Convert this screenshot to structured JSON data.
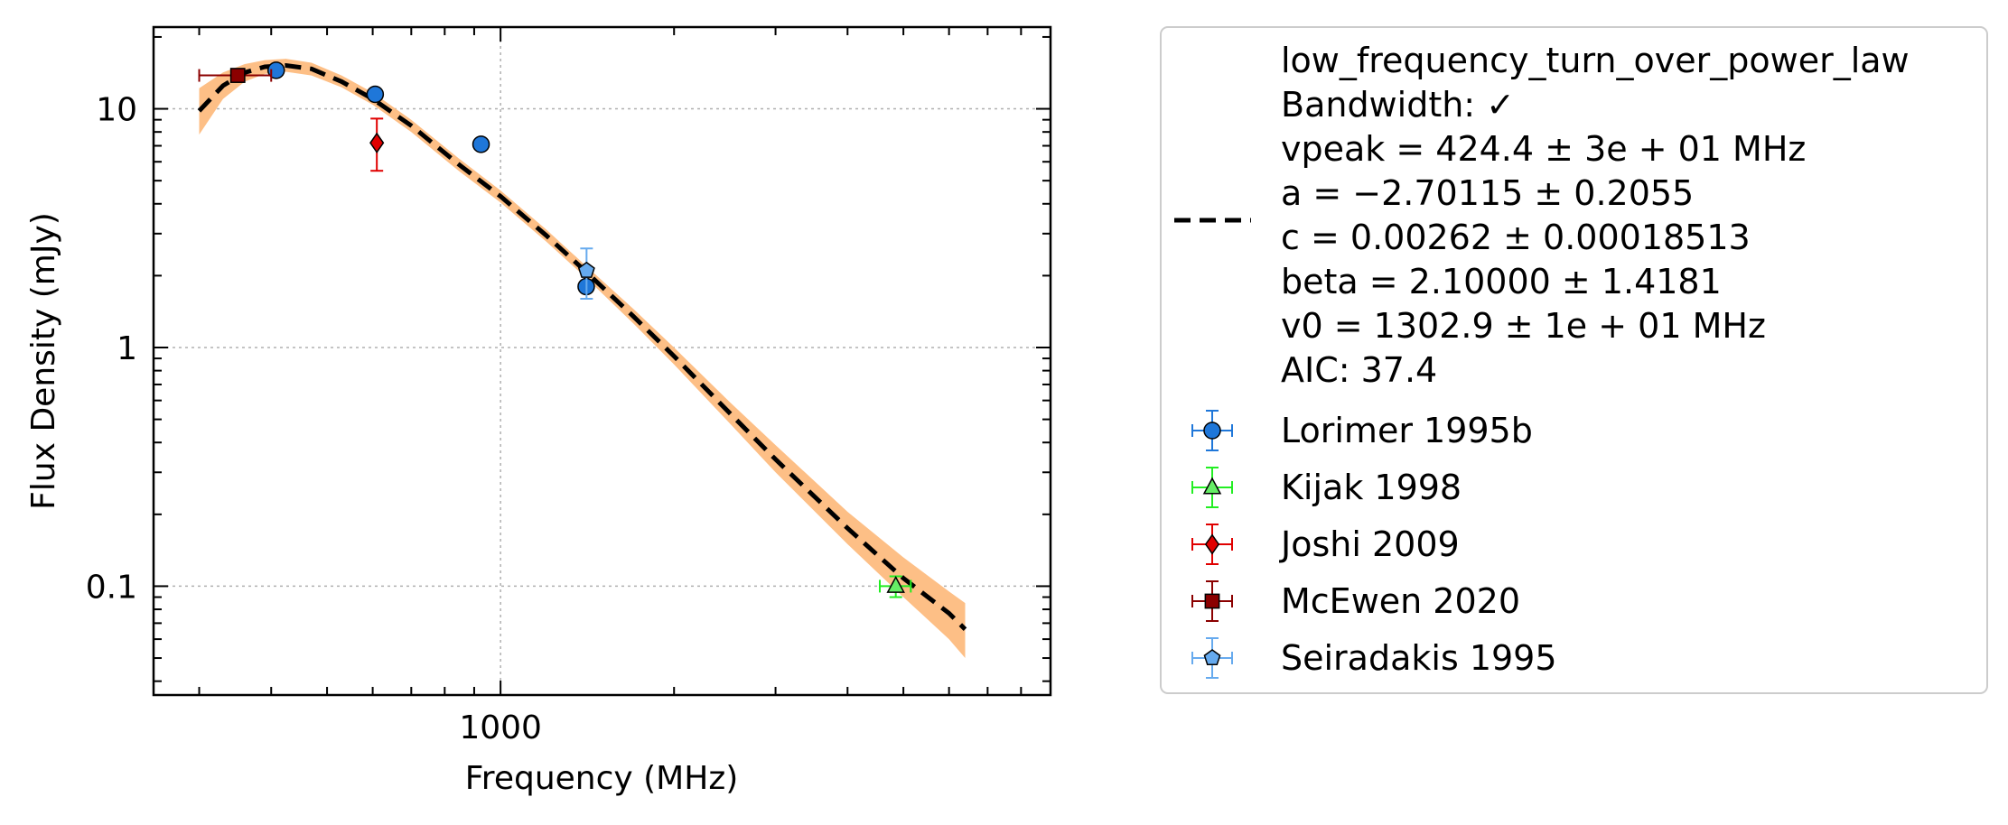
{
  "chart_data": {
    "type": "scatter",
    "xlabel": "Frequency (MHz)",
    "ylabel": "Flux Density (mJy)",
    "x_scale": "log",
    "y_scale": "log",
    "xlim": [
      250,
      9000
    ],
    "ylim": [
      0.035,
      22
    ],
    "x_ticks": [
      {
        "value": 1000,
        "label": "1000"
      }
    ],
    "y_ticks": [
      {
        "value": 0.1,
        "label": "0.1"
      },
      {
        "value": 1,
        "label": "1"
      },
      {
        "value": 10,
        "label": "10"
      }
    ],
    "grid": true,
    "legend_position": "outside right",
    "fit": {
      "label_lines": [
        "low_frequency_turn_over_power_law",
        "Bandwidth: ✓",
        "vpeak = 424.4 ± 3e + 01 MHz",
        "a = −2.70115 ± 0.2055",
        "c = 0.00262 ± 0.00018513",
        "beta = 2.10000 ± 1.4181",
        "v0 = 1302.9 ± 1e + 01 MHz",
        "AIC: 37.4"
      ],
      "line_color": "#000000",
      "band_color": "#fdbf86",
      "curve": [
        {
          "x": 300,
          "y": 9.8,
          "lo": 7.8,
          "hi": 12.2
        },
        {
          "x": 330,
          "y": 12.5,
          "lo": 11.0,
          "hi": 14.2
        },
        {
          "x": 360,
          "y": 14.2,
          "lo": 13.0,
          "hi": 15.4
        },
        {
          "x": 390,
          "y": 15.0,
          "lo": 14.0,
          "hi": 16.0
        },
        {
          "x": 424,
          "y": 15.2,
          "lo": 14.3,
          "hi": 16.2
        },
        {
          "x": 470,
          "y": 14.7,
          "lo": 13.8,
          "hi": 15.6
        },
        {
          "x": 530,
          "y": 13.0,
          "lo": 12.3,
          "hi": 13.8
        },
        {
          "x": 600,
          "y": 11.0,
          "lo": 10.4,
          "hi": 11.7
        },
        {
          "x": 700,
          "y": 8.5,
          "lo": 8.0,
          "hi": 9.0
        },
        {
          "x": 850,
          "y": 5.8,
          "lo": 5.45,
          "hi": 6.15
        },
        {
          "x": 1000,
          "y": 4.3,
          "lo": 4.05,
          "hi": 4.55
        },
        {
          "x": 1200,
          "y": 2.95,
          "lo": 2.78,
          "hi": 3.12
        },
        {
          "x": 1400,
          "y": 2.1,
          "lo": 1.98,
          "hi": 2.22
        },
        {
          "x": 1700,
          "y": 1.35,
          "lo": 1.26,
          "hi": 1.45
        },
        {
          "x": 2000,
          "y": 0.92,
          "lo": 0.85,
          "hi": 1.0
        },
        {
          "x": 2500,
          "y": 0.53,
          "lo": 0.48,
          "hi": 0.59
        },
        {
          "x": 3000,
          "y": 0.34,
          "lo": 0.3,
          "hi": 0.39
        },
        {
          "x": 4000,
          "y": 0.175,
          "lo": 0.15,
          "hi": 0.205
        },
        {
          "x": 5000,
          "y": 0.108,
          "lo": 0.09,
          "hi": 0.132
        },
        {
          "x": 6000,
          "y": 0.077,
          "lo": 0.06,
          "hi": 0.095
        },
        {
          "x": 6400,
          "y": 0.066,
          "lo": 0.05,
          "hi": 0.085
        }
      ]
    },
    "series": [
      {
        "name": "Lorimer 1995b",
        "marker": "circle",
        "color": "#1f77d9",
        "errcolor": "#1f77d9",
        "points": [
          {
            "x": 408,
            "y": 14.5,
            "yerr": 0
          },
          {
            "x": 606,
            "y": 11.5,
            "yerr": 0
          },
          {
            "x": 925,
            "y": 7.1,
            "yerr": 0
          },
          {
            "x": 1408,
            "y": 1.8,
            "yerr": 0
          }
        ]
      },
      {
        "name": "Kijak 1998",
        "marker": "triangle",
        "color": "#66ee66",
        "errcolor": "#22ee22",
        "points": [
          {
            "x": 4850,
            "y": 0.1,
            "yerr": 0.01,
            "xerr": 300
          }
        ]
      },
      {
        "name": "Joshi 2009",
        "marker": "diamond",
        "color": "#e00000",
        "errcolor": "#e00000",
        "points": [
          {
            "x": 610,
            "y": 7.2,
            "yerr_lo": 1.7,
            "yerr_hi": 1.9
          }
        ]
      },
      {
        "name": "McEwen 2020",
        "marker": "square",
        "color": "#8b0000",
        "errcolor": "#8b0000",
        "points": [
          {
            "x": 350,
            "y": 13.8,
            "yerr": 0.6,
            "xerr_lo": 50,
            "xerr_hi": 50
          }
        ]
      },
      {
        "name": "Seiradakis 1995",
        "marker": "pentagon",
        "color": "#66aaee",
        "errcolor": "#66aaee",
        "points": [
          {
            "x": 1410,
            "y": 2.1,
            "yerr": 0.5
          }
        ]
      }
    ]
  }
}
